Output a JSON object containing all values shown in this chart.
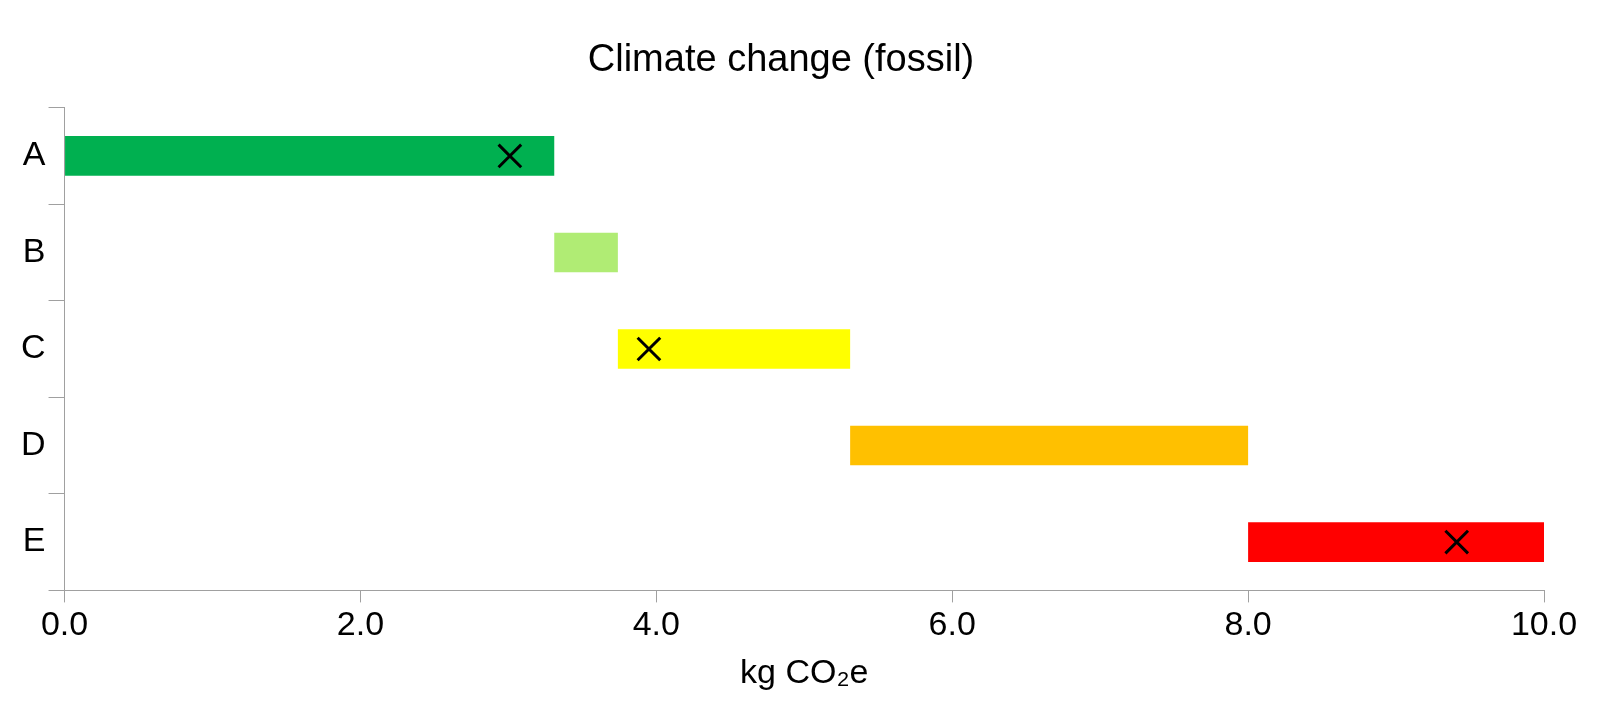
{
  "chart_data": {
    "type": "bar",
    "orientation": "horizontal",
    "title": "Climate change (fossil)",
    "xlabel": "kg CO₂e",
    "categories": [
      "A",
      "B",
      "C",
      "D",
      "E"
    ],
    "series": [
      {
        "base": [
          0,
          3.31,
          3.74,
          5.31,
          8.0
        ],
        "colors": [
          "#00b050",
          "#b0ec74",
          "#ffff00",
          "#ffc000",
          "#ff0000"
        ],
        "values": [
          3.31,
          0.43,
          1.57,
          2.69,
          2.0
        ]
      },
      {
        "type": "scatter",
        "color": "#000000",
        "marker": "cross",
        "x": [
          "A",
          "C",
          "E"
        ],
        "values": [
          3.01,
          3.95,
          9.41
        ]
      }
    ],
    "xlim": [
      0,
      10
    ],
    "xticks": [
      {
        "value": 0,
        "label": "0.0"
      },
      {
        "value": 2,
        "label": "2.0"
      },
      {
        "value": 4,
        "label": "4.0"
      },
      {
        "value": 6,
        "label": "6.0"
      },
      {
        "value": 8,
        "label": "8.0"
      },
      {
        "value": 10,
        "label": "10.0"
      }
    ],
    "grid": false,
    "legend": false
  }
}
